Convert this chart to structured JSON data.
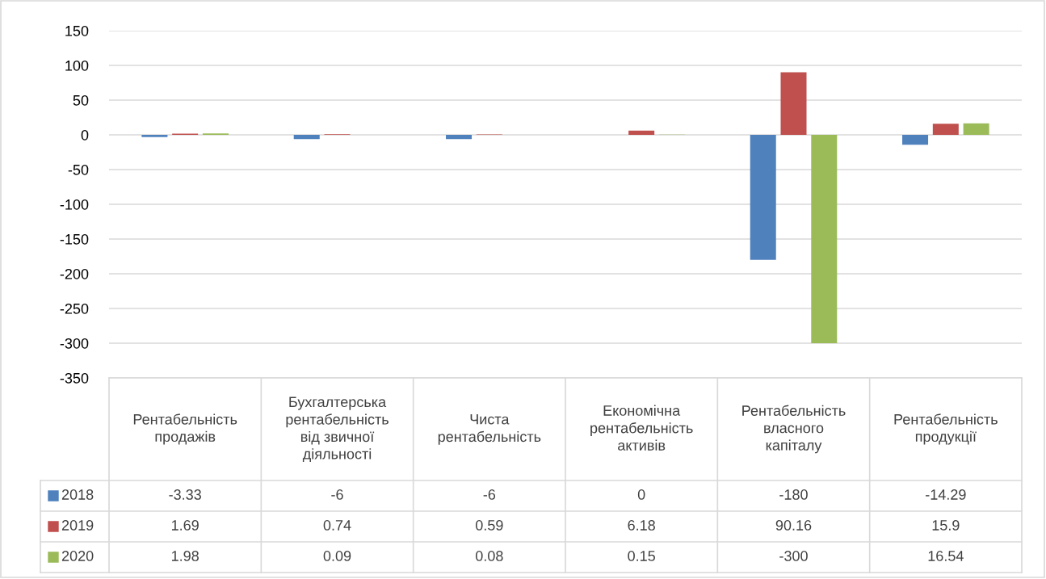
{
  "chart_data": {
    "type": "bar",
    "categories": [
      "Рентабельність\nпродажів",
      "Бухгалтерська\nрентабельність\nвід звичної\nдіяльності",
      "Чиста\nрентабельність",
      "Економічна\nрентабельність\nактивів",
      "Рентабельність\nвласного\nкапіталу",
      "Рентабельність\nпродукції"
    ],
    "series": [
      {
        "name": "2018",
        "color": "#4f81bd",
        "values": [
          -3.33,
          -6,
          -6,
          0,
          -180,
          -14.29
        ]
      },
      {
        "name": "2019",
        "color": "#c0504d",
        "values": [
          1.69,
          0.74,
          0.59,
          6.18,
          90.16,
          15.9
        ]
      },
      {
        "name": "2020",
        "color": "#9bbb59",
        "values": [
          1.98,
          0.09,
          0.08,
          0.15,
          -300,
          16.54
        ]
      }
    ],
    "ylim": [
      -350,
      150
    ],
    "yticks": [
      -350,
      -300,
      -250,
      -200,
      -150,
      -100,
      -50,
      0,
      50,
      100,
      150
    ],
    "grid": "y",
    "legend": "bottom",
    "data_labels": true
  }
}
